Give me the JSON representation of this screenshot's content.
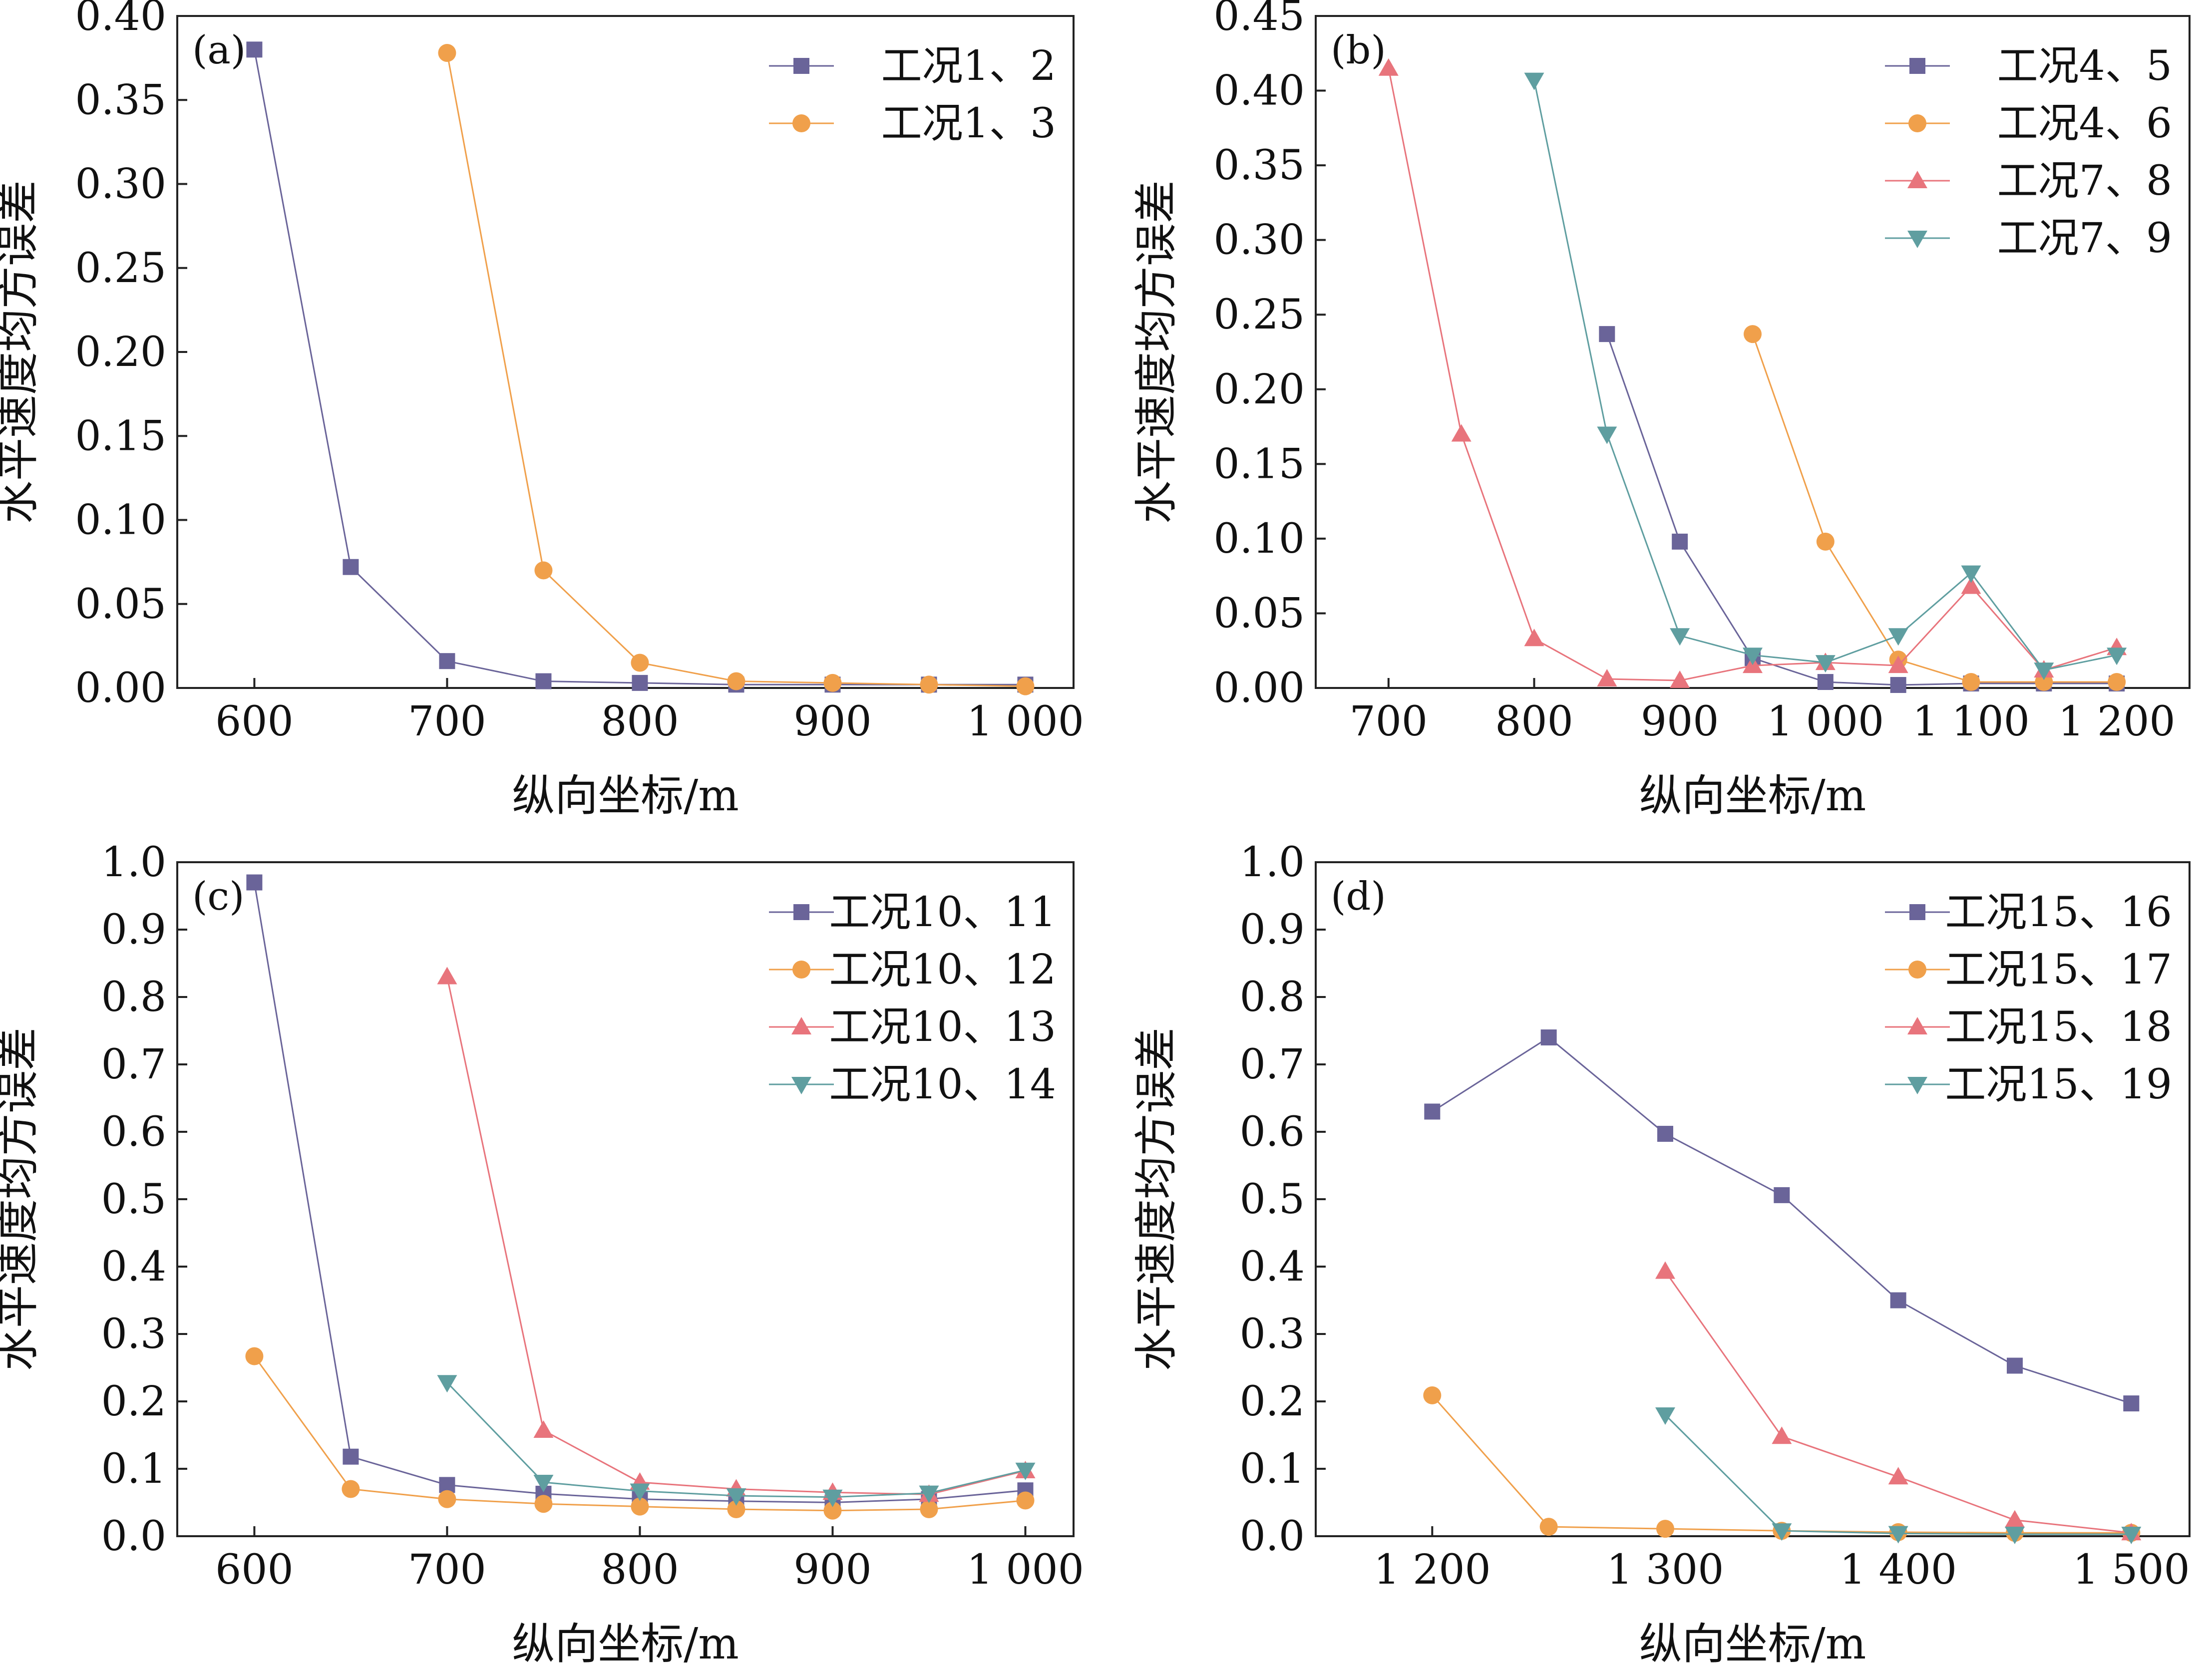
{
  "chart_data": [
    {
      "type": "line",
      "panel": "(a)",
      "xlabel": "纵向坐标/m",
      "ylabel": "水平速度均方误差",
      "xlim": [
        560,
        1025
      ],
      "ylim": [
        0,
        0.4
      ],
      "xticks": [
        600,
        700,
        800,
        900,
        1000
      ],
      "xtick_labels": [
        "600",
        "700",
        "800",
        "900",
        "1 000"
      ],
      "yticks": [
        0,
        0.05,
        0.1,
        0.15,
        0.2,
        0.25,
        0.3,
        0.35,
        0.4
      ],
      "ytick_labels": [
        "0.00",
        "0.05",
        "0.10",
        "0.15",
        "0.20",
        "0.25",
        "0.30",
        "0.35",
        "0.40"
      ],
      "legend_position": "top-right",
      "series": [
        {
          "name": "工况1、2",
          "marker": "square",
          "color": "#6a6499",
          "x": [
            600,
            650,
            700,
            750,
            800,
            850,
            900,
            950,
            1000
          ],
          "y": [
            0.38,
            0.072,
            0.016,
            0.004,
            0.003,
            0.002,
            0.002,
            0.002,
            0.002
          ]
        },
        {
          "name": "工况1、3",
          "marker": "circle",
          "color": "#f0a04b",
          "x": [
            700,
            750,
            800,
            850,
            900,
            950,
            1000
          ],
          "y": [
            0.378,
            0.07,
            0.015,
            0.004,
            0.003,
            0.002,
            0.001
          ]
        }
      ]
    },
    {
      "type": "line",
      "panel": "(b)",
      "xlabel": "纵向坐标/m",
      "ylabel": "水平速度均方误差",
      "xlim": [
        650,
        1250
      ],
      "ylim": [
        0,
        0.45
      ],
      "xticks": [
        700,
        800,
        900,
        1000,
        1100,
        1200
      ],
      "xtick_labels": [
        "700",
        "800",
        "900",
        "1 000",
        "1 100",
        "1 200"
      ],
      "yticks": [
        0,
        0.05,
        0.1,
        0.15,
        0.2,
        0.25,
        0.3,
        0.35,
        0.4,
        0.45
      ],
      "ytick_labels": [
        "0.00",
        "0.05",
        "0.10",
        "0.15",
        "0.20",
        "0.25",
        "0.30",
        "0.35",
        "0.40",
        "0.45"
      ],
      "legend_position": "top-right",
      "series": [
        {
          "name": "工况4、5",
          "marker": "square",
          "color": "#6a6499",
          "x": [
            850,
            900,
            950,
            1000,
            1050,
            1100,
            1150,
            1200
          ],
          "y": [
            0.237,
            0.098,
            0.02,
            0.004,
            0.002,
            0.003,
            0.003,
            0.003
          ]
        },
        {
          "name": "工况4、6",
          "marker": "circle",
          "color": "#f0a04b",
          "x": [
            950,
            1000,
            1050,
            1100,
            1150,
            1200
          ],
          "y": [
            0.237,
            0.098,
            0.019,
            0.004,
            0.004,
            0.004
          ]
        },
        {
          "name": "工况7、8",
          "marker": "triangle-up",
          "color": "#e8747c",
          "x": [
            700,
            750,
            800,
            850,
            900,
            950,
            1000,
            1050,
            1100,
            1150,
            1200
          ],
          "y": [
            0.415,
            0.17,
            0.033,
            0.006,
            0.005,
            0.015,
            0.017,
            0.015,
            0.068,
            0.012,
            0.027
          ]
        },
        {
          "name": "工况7、9",
          "marker": "triangle-down",
          "color": "#5f9ea0",
          "x": [
            800,
            850,
            900,
            950,
            1000,
            1050,
            1100,
            1150,
            1200
          ],
          "y": [
            0.407,
            0.17,
            0.035,
            0.022,
            0.017,
            0.035,
            0.077,
            0.012,
            0.022
          ]
        }
      ]
    },
    {
      "type": "line",
      "panel": "(c)",
      "xlabel": "纵向坐标/m",
      "ylabel": "水平速度均方误差",
      "xlim": [
        560,
        1025
      ],
      "ylim": [
        0,
        1.0
      ],
      "xticks": [
        600,
        700,
        800,
        900,
        1000
      ],
      "xtick_labels": [
        "600",
        "700",
        "800",
        "900",
        "1 000"
      ],
      "yticks": [
        0,
        0.1,
        0.2,
        0.3,
        0.4,
        0.5,
        0.6,
        0.7,
        0.8,
        0.9,
        1.0
      ],
      "ytick_labels": [
        "0.0",
        "0.1",
        "0.2",
        "0.3",
        "0.4",
        "0.5",
        "0.6",
        "0.7",
        "0.8",
        "0.9",
        "1.0"
      ],
      "legend_position": "top-right",
      "series": [
        {
          "name": "工况10、11",
          "marker": "square",
          "color": "#6a6499",
          "x": [
            600,
            650,
            700,
            750,
            800,
            850,
            900,
            950,
            1000
          ],
          "y": [
            0.97,
            0.118,
            0.076,
            0.063,
            0.055,
            0.052,
            0.05,
            0.055,
            0.068
          ]
        },
        {
          "name": "工况10、12",
          "marker": "circle",
          "color": "#f0a04b",
          "x": [
            600,
            650,
            700,
            750,
            800,
            850,
            900,
            950,
            1000
          ],
          "y": [
            0.267,
            0.07,
            0.055,
            0.048,
            0.044,
            0.04,
            0.038,
            0.04,
            0.053
          ]
        },
        {
          "name": "工况10、13",
          "marker": "triangle-up",
          "color": "#e8747c",
          "x": [
            700,
            750,
            800,
            850,
            900,
            950,
            1000
          ],
          "y": [
            0.83,
            0.157,
            0.08,
            0.07,
            0.065,
            0.062,
            0.097
          ]
        },
        {
          "name": "工况10、14",
          "marker": "triangle-down",
          "color": "#5f9ea0",
          "x": [
            700,
            750,
            800,
            850,
            900,
            950,
            1000
          ],
          "y": [
            0.228,
            0.08,
            0.067,
            0.06,
            0.058,
            0.064,
            0.098
          ]
        }
      ]
    },
    {
      "type": "line",
      "panel": "(d)",
      "xlabel": "纵向坐标/m",
      "ylabel": "水平速度均方误差",
      "xlim": [
        1150,
        1525
      ],
      "ylim": [
        0,
        1.0
      ],
      "xticks": [
        1200,
        1300,
        1400,
        1500
      ],
      "xtick_labels": [
        "1 200",
        "1 300",
        "1 400",
        "1 500"
      ],
      "yticks": [
        0,
        0.1,
        0.2,
        0.3,
        0.4,
        0.5,
        0.6,
        0.7,
        0.8,
        0.9,
        1.0
      ],
      "ytick_labels": [
        "0.0",
        "0.1",
        "0.2",
        "0.3",
        "0.4",
        "0.5",
        "0.6",
        "0.7",
        "0.8",
        "0.9",
        "1.0"
      ],
      "legend_position": "top-right",
      "series": [
        {
          "name": "工况15、16",
          "marker": "square",
          "color": "#6a6499",
          "x": [
            1200,
            1250,
            1300,
            1350,
            1400,
            1450,
            1500
          ],
          "y": [
            0.63,
            0.74,
            0.597,
            0.506,
            0.35,
            0.253,
            0.197
          ]
        },
        {
          "name": "工况15、17",
          "marker": "circle",
          "color": "#f0a04b",
          "x": [
            1200,
            1250,
            1300,
            1350,
            1400,
            1450,
            1500
          ],
          "y": [
            0.209,
            0.014,
            0.011,
            0.008,
            0.006,
            0.005,
            0.005
          ]
        },
        {
          "name": "工况15、18",
          "marker": "triangle-up",
          "color": "#e8747c",
          "x": [
            1300,
            1350,
            1400,
            1450,
            1500
          ],
          "y": [
            0.393,
            0.148,
            0.088,
            0.024,
            0.005
          ]
        },
        {
          "name": "工况15、19",
          "marker": "triangle-down",
          "color": "#5f9ea0",
          "x": [
            1300,
            1350,
            1400,
            1450,
            1500
          ],
          "y": [
            0.18,
            0.008,
            0.004,
            0.003,
            0.003
          ]
        }
      ]
    }
  ]
}
